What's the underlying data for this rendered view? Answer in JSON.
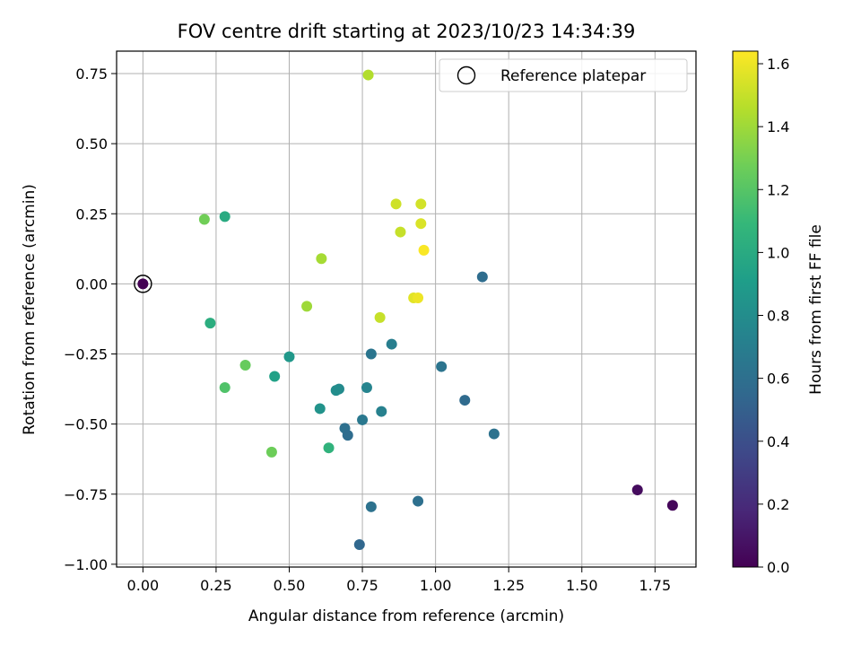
{
  "chart_data": {
    "type": "scatter",
    "title": "FOV centre drift starting at 2023/10/23 14:34:39",
    "xlabel": "Angular distance from reference (arcmin)",
    "ylabel": "Rotation from reference (arcmin)",
    "xlim": [
      -0.09,
      1.89
    ],
    "ylim": [
      -1.01,
      0.83
    ],
    "xticks": [
      "0.00",
      "0.25",
      "0.50",
      "0.75",
      "1.00",
      "1.25",
      "1.50",
      "1.75"
    ],
    "xtick_values": [
      0,
      0.25,
      0.5,
      0.75,
      1.0,
      1.25,
      1.5,
      1.75
    ],
    "yticks": [
      "−1.00",
      "−0.75",
      "−0.50",
      "−0.25",
      "0.00",
      "0.25",
      "0.50",
      "0.75"
    ],
    "ytick_values": [
      -1.0,
      -0.75,
      -0.5,
      -0.25,
      0,
      0.25,
      0.5,
      0.75
    ],
    "grid": true,
    "legend": {
      "label": "Reference platepar",
      "placement": "upper-right"
    },
    "reference_point": {
      "x": 0.0,
      "y": 0.0
    },
    "colorbar": {
      "label": "Hours from first FF file",
      "colormap": "viridis",
      "range": [
        0.0,
        1.64
      ],
      "ticks": [
        "0.0",
        "0.2",
        "0.4",
        "0.6",
        "0.8",
        "1.0",
        "1.2",
        "1.4",
        "1.6"
      ],
      "tick_values": [
        0,
        0.2,
        0.4,
        0.6,
        0.8,
        1.0,
        1.2,
        1.4,
        1.6
      ]
    },
    "points": [
      {
        "x": 0.0,
        "y": 0.0,
        "hours": 0.0
      },
      {
        "x": 1.81,
        "y": -0.79,
        "hours": 0.03
      },
      {
        "x": 1.69,
        "y": -0.735,
        "hours": 0.05
      },
      {
        "x": 0.74,
        "y": -0.93,
        "hours": 0.55
      },
      {
        "x": 0.94,
        "y": -0.775,
        "hours": 0.6
      },
      {
        "x": 0.78,
        "y": -0.795,
        "hours": 0.62
      },
      {
        "x": 1.16,
        "y": 0.025,
        "hours": 0.58
      },
      {
        "x": 1.1,
        "y": -0.415,
        "hours": 0.57
      },
      {
        "x": 1.2,
        "y": -0.535,
        "hours": 0.62
      },
      {
        "x": 1.02,
        "y": -0.295,
        "hours": 0.63
      },
      {
        "x": 0.69,
        "y": -0.515,
        "hours": 0.6
      },
      {
        "x": 0.7,
        "y": -0.54,
        "hours": 0.58
      },
      {
        "x": 0.75,
        "y": -0.485,
        "hours": 0.66
      },
      {
        "x": 0.78,
        "y": -0.25,
        "hours": 0.64
      },
      {
        "x": 0.85,
        "y": -0.215,
        "hours": 0.7
      },
      {
        "x": 0.815,
        "y": -0.455,
        "hours": 0.72
      },
      {
        "x": 0.765,
        "y": -0.37,
        "hours": 0.74
      },
      {
        "x": 0.67,
        "y": -0.375,
        "hours": 0.78
      },
      {
        "x": 0.66,
        "y": -0.38,
        "hours": 0.8
      },
      {
        "x": 0.605,
        "y": -0.445,
        "hours": 0.84
      },
      {
        "x": 0.5,
        "y": -0.26,
        "hours": 0.87
      },
      {
        "x": 0.45,
        "y": -0.33,
        "hours": 0.93
      },
      {
        "x": 0.635,
        "y": -0.585,
        "hours": 1.06
      },
      {
        "x": 0.28,
        "y": 0.24,
        "hours": 1.0
      },
      {
        "x": 0.23,
        "y": -0.14,
        "hours": 1.02
      },
      {
        "x": 0.28,
        "y": -0.37,
        "hours": 1.18
      },
      {
        "x": 0.35,
        "y": -0.29,
        "hours": 1.25
      },
      {
        "x": 0.44,
        "y": -0.6,
        "hours": 1.27
      },
      {
        "x": 0.21,
        "y": 0.23,
        "hours": 1.28
      },
      {
        "x": 0.56,
        "y": -0.08,
        "hours": 1.4
      },
      {
        "x": 0.61,
        "y": 0.09,
        "hours": 1.42
      },
      {
        "x": 0.77,
        "y": 0.745,
        "hours": 1.45
      },
      {
        "x": 0.81,
        "y": -0.12,
        "hours": 1.5
      },
      {
        "x": 0.88,
        "y": 0.185,
        "hours": 1.5
      },
      {
        "x": 0.865,
        "y": 0.285,
        "hours": 1.52
      },
      {
        "x": 0.95,
        "y": 0.285,
        "hours": 1.53
      },
      {
        "x": 0.95,
        "y": 0.215,
        "hours": 1.55
      },
      {
        "x": 0.925,
        "y": -0.05,
        "hours": 1.57
      },
      {
        "x": 0.94,
        "y": -0.05,
        "hours": 1.6
      },
      {
        "x": 0.96,
        "y": 0.12,
        "hours": 1.63
      }
    ]
  }
}
